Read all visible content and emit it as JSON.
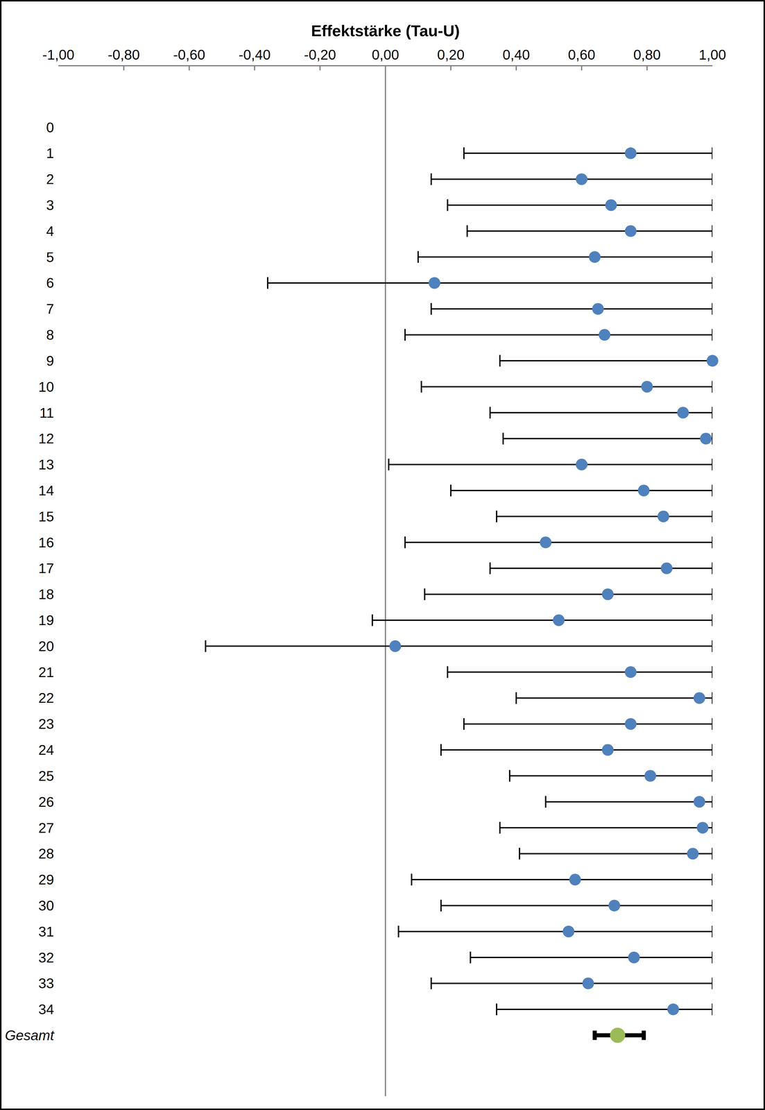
{
  "chart_data": {
    "type": "scatter",
    "orientation": "horizontal",
    "xlabel": "Effektstärke (Tau-U)",
    "categories": [
      "0",
      "1",
      "2",
      "3",
      "4",
      "5",
      "6",
      "7",
      "8",
      "9",
      "10",
      "11",
      "12",
      "13",
      "14",
      "15",
      "16",
      "17",
      "18",
      "19",
      "20",
      "21",
      "22",
      "23",
      "24",
      "25",
      "26",
      "27",
      "28",
      "29",
      "30",
      "31",
      "32",
      "33",
      "34",
      "Gesamt"
    ],
    "xlim": [
      -1,
      1
    ],
    "xticks": [
      {
        "value": -1,
        "label": "-1,00"
      },
      {
        "value": -0.8,
        "label": "-0,80"
      },
      {
        "value": -0.6,
        "label": "-0,60"
      },
      {
        "value": -0.4,
        "label": "-0,40"
      },
      {
        "value": -0.2,
        "label": "-0,20"
      },
      {
        "value": 0,
        "label": "0,00"
      },
      {
        "value": 0.2,
        "label": "0,20"
      },
      {
        "value": 0.4,
        "label": "0,40"
      },
      {
        "value": 0.6,
        "label": "0,60"
      },
      {
        "value": 0.8,
        "label": "0,80"
      },
      {
        "value": 1,
        "label": "1,00"
      }
    ],
    "grid": false,
    "series": [
      {
        "color": "#4f81bd",
        "marker": "circle",
        "values": [
          null,
          0.75,
          0.6,
          0.69,
          0.75,
          0.64,
          0.15,
          0.65,
          0.67,
          1.0,
          0.8,
          0.91,
          0.98,
          0.6,
          0.79,
          0.85,
          0.49,
          0.86,
          0.68,
          0.53,
          0.03,
          0.75,
          0.96,
          0.75,
          0.68,
          0.81,
          0.96,
          0.97,
          0.94,
          0.58,
          0.7,
          0.56,
          0.76,
          0.62,
          0.88,
          null
        ],
        "lower": [
          null,
          0.24,
          0.14,
          0.19,
          0.25,
          0.1,
          -0.36,
          0.14,
          0.06,
          0.35,
          0.11,
          0.32,
          0.36,
          0.01,
          0.2,
          0.34,
          0.06,
          0.32,
          0.12,
          -0.04,
          -0.55,
          0.19,
          0.4,
          0.24,
          0.17,
          0.38,
          0.49,
          0.35,
          0.41,
          0.08,
          0.17,
          0.04,
          0.26,
          0.14,
          0.34,
          null
        ],
        "upper": [
          null,
          1.0,
          1.0,
          1.0,
          1.0,
          1.0,
          1.0,
          1.0,
          1.0,
          1.0,
          1.0,
          1.0,
          1.0,
          1.0,
          1.0,
          1.0,
          1.0,
          1.0,
          1.0,
          1.0,
          1.0,
          1.0,
          1.0,
          1.0,
          1.0,
          1.0,
          1.0,
          1.0,
          1.0,
          1.0,
          1.0,
          1.0,
          1.0,
          1.0,
          1.0,
          null
        ]
      },
      {
        "color": "#9bbb59",
        "marker": "circle",
        "values": [
          null,
          null,
          null,
          null,
          null,
          null,
          null,
          null,
          null,
          null,
          null,
          null,
          null,
          null,
          null,
          null,
          null,
          null,
          null,
          null,
          null,
          null,
          null,
          null,
          null,
          null,
          null,
          null,
          null,
          null,
          null,
          null,
          null,
          null,
          null,
          0.71
        ],
        "lower": [
          null,
          null,
          null,
          null,
          null,
          null,
          null,
          null,
          null,
          null,
          null,
          null,
          null,
          null,
          null,
          null,
          null,
          null,
          null,
          null,
          null,
          null,
          null,
          null,
          null,
          null,
          null,
          null,
          null,
          null,
          null,
          null,
          null,
          null,
          null,
          0.64
        ],
        "upper": [
          null,
          null,
          null,
          null,
          null,
          null,
          null,
          null,
          null,
          null,
          null,
          null,
          null,
          null,
          null,
          null,
          null,
          null,
          null,
          null,
          null,
          null,
          null,
          null,
          null,
          null,
          null,
          null,
          null,
          null,
          null,
          null,
          null,
          null,
          null,
          0.79
        ]
      }
    ]
  }
}
